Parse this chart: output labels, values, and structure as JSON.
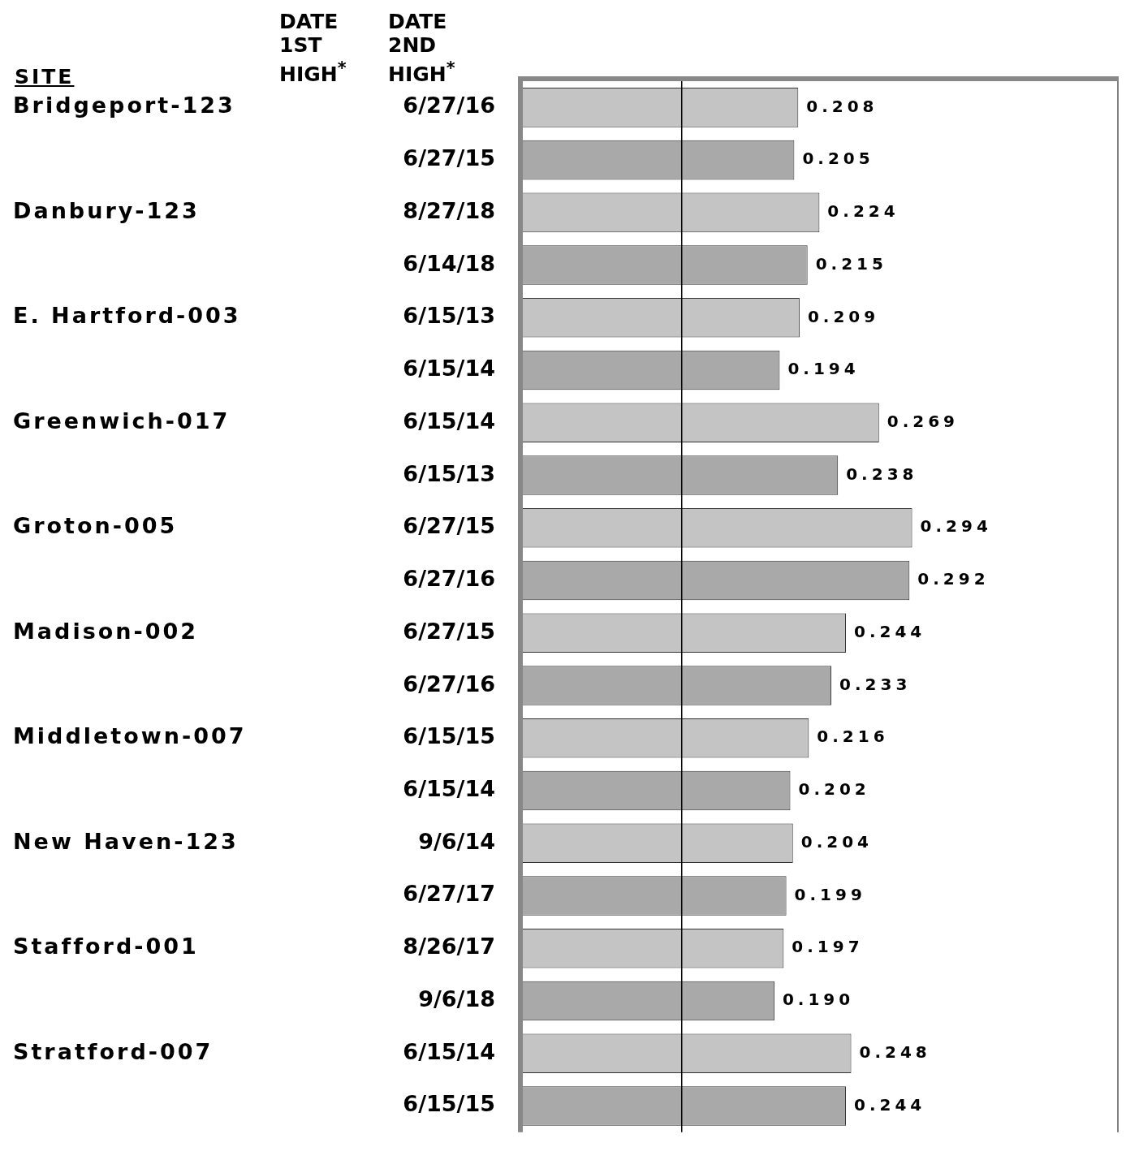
{
  "chart_data": {
    "type": "bar",
    "orientation": "horizontal",
    "categories": [
      "6/27/16",
      "6/27/15",
      "8/27/18",
      "6/14/18",
      "6/15/13",
      "6/15/14",
      "6/15/14",
      "6/15/13",
      "6/27/15",
      "6/27/16",
      "6/27/15",
      "6/27/16",
      "6/15/15",
      "6/15/14",
      "9/6/14",
      "6/27/17",
      "8/26/17",
      "9/6/18",
      "6/15/14",
      "6/15/15"
    ],
    "annotations": [
      "SITE",
      "DATE 1ST HIGH$^{*}$",
      "DATE 2ND HIGH$^{*}$",
      "Bridgeport-123",
      "Danbury-123",
      "E. Hartford-003",
      "Greenwich-017",
      "Groton-005",
      "Madison-002",
      "Middletown-007",
      "New Haven-123",
      "Stafford-001",
      "Stratford-007"
    ],
    "series": [
      {
        "color": "#c4c4c4",
        "values": [
          0.208,
          null,
          0.224,
          null,
          0.209,
          null,
          0.269,
          null,
          0.294,
          null,
          0.244,
          null,
          0.216,
          null,
          0.204,
          null,
          0.197,
          null,
          0.248,
          null
        ],
        "value_labels": [
          "0.208",
          null,
          "0.224",
          null,
          "0.209",
          null,
          "0.269",
          null,
          "0.294",
          null,
          "0.244",
          null,
          "0.216",
          null,
          "0.204",
          null,
          "0.197",
          null,
          "0.248",
          null
        ]
      },
      {
        "color": "#a9a9a9",
        "values": [
          null,
          0.205,
          null,
          0.215,
          null,
          0.194,
          null,
          0.238,
          null,
          0.292,
          null,
          0.233,
          null,
          0.202,
          null,
          0.199,
          null,
          0.19,
          null,
          0.244
        ],
        "value_labels": [
          null,
          "0.205",
          null,
          "0.215",
          null,
          "0.194",
          null,
          "0.238",
          null,
          "0.292",
          null,
          "0.233",
          null,
          "0.202",
          null,
          "0.199",
          null,
          "0.190",
          null,
          "0.244"
        ]
      }
    ],
    "xlim": [
      0,
      0.45
    ],
    "tick_labels": "y",
    "grid": false,
    "legend": false,
    "ref_lines": [
      {
        "axis": "x",
        "value": 0.12,
        "color": "#000000"
      }
    ]
  }
}
